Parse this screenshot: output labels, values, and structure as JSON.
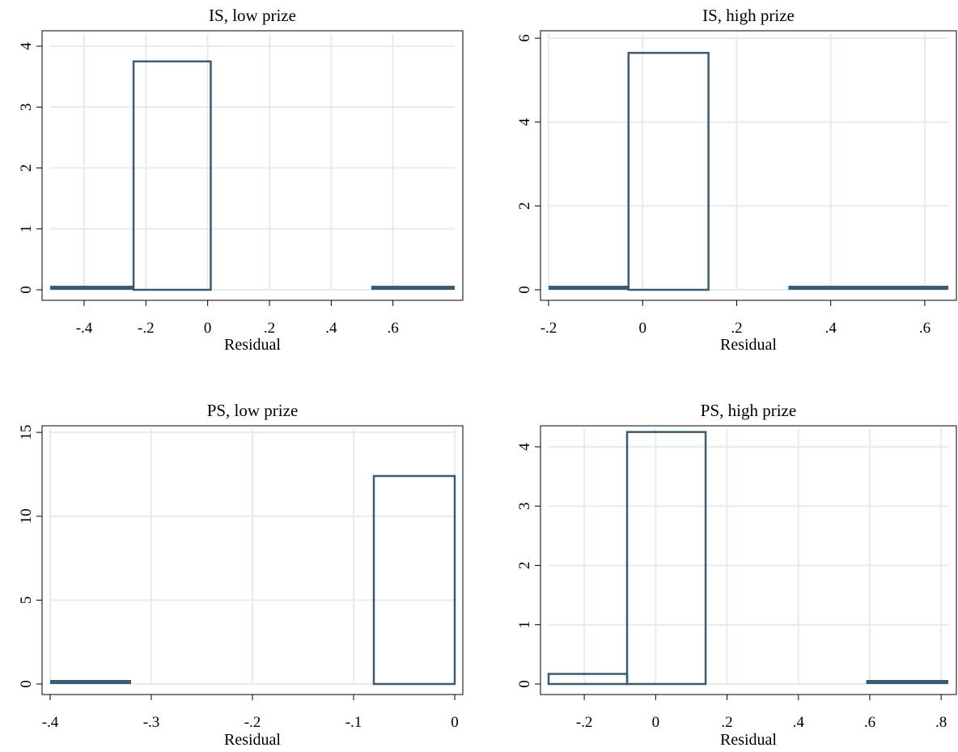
{
  "colors": {
    "bar": "#3b5b70",
    "grid": "#e4ecee",
    "frame": "#000000",
    "background": "#ffffff"
  },
  "chart_data": [
    {
      "type": "bar",
      "title": "IS, low prize",
      "xlabel": "Residual",
      "ylabel": "",
      "xlim": [
        -0.51,
        0.8
      ],
      "ylim": [
        0,
        4.2
      ],
      "xticks": [
        -0.4,
        -0.2,
        0,
        0.2,
        0.4,
        0.6
      ],
      "xtick_labels": [
        "-.4",
        "-.2",
        "0",
        ".2",
        ".4",
        ".6"
      ],
      "yticks": [
        0,
        1,
        2,
        3,
        4
      ],
      "ytick_labels": [
        "0",
        "1",
        "2",
        "3",
        "4"
      ],
      "grid": true,
      "bins": [
        {
          "x0": -0.51,
          "x1": -0.24,
          "value": 0.04
        },
        {
          "x0": -0.24,
          "x1": 0.01,
          "value": 3.75
        },
        {
          "x0": 0.53,
          "x1": 0.8,
          "value": 0.04
        }
      ]
    },
    {
      "type": "bar",
      "title": "IS, high prize",
      "xlabel": "Residual",
      "ylabel": "",
      "xlim": [
        -0.2,
        0.65
      ],
      "ylim": [
        0,
        6.1
      ],
      "xticks": [
        -0.2,
        0,
        0.2,
        0.4,
        0.6
      ],
      "xtick_labels": [
        "-.2",
        "0",
        ".2",
        ".4",
        ".6"
      ],
      "yticks": [
        0,
        2,
        4,
        6
      ],
      "ytick_labels": [
        "0",
        "2",
        "4",
        "6"
      ],
      "grid": true,
      "bins": [
        {
          "x0": -0.2,
          "x1": -0.03,
          "value": 0.05
        },
        {
          "x0": -0.03,
          "x1": 0.14,
          "value": 5.65
        },
        {
          "x0": 0.31,
          "x1": 0.65,
          "value": 0.05
        }
      ]
    },
    {
      "type": "bar",
      "title": "PS, low prize",
      "xlabel": "Residual",
      "ylabel": "",
      "xlim": [
        -0.4,
        0
      ],
      "ylim": [
        0,
        15.2
      ],
      "xticks": [
        -0.4,
        -0.3,
        -0.2,
        -0.1,
        0
      ],
      "xtick_labels": [
        "-.4",
        "-.3",
        "-.2",
        "-.1",
        "0"
      ],
      "yticks": [
        0,
        5,
        10,
        15
      ],
      "ytick_labels": [
        "0",
        "5",
        "10",
        "15"
      ],
      "grid": true,
      "bins": [
        {
          "x0": -0.4,
          "x1": -0.32,
          "value": 0.1
        },
        {
          "x0": -0.08,
          "x1": 0,
          "value": 12.4
        }
      ]
    },
    {
      "type": "bar",
      "title": "PS, high prize",
      "xlabel": "Residual",
      "ylabel": "",
      "xlim": [
        -0.3,
        0.82
      ],
      "ylim": [
        0,
        4.3
      ],
      "xticks": [
        -0.2,
        0,
        0.2,
        0.4,
        0.6,
        0.8
      ],
      "xtick_labels": [
        "-.2",
        "0",
        ".2",
        ".4",
        ".6",
        ".8"
      ],
      "yticks": [
        0,
        1,
        2,
        3,
        4
      ],
      "ytick_labels": [
        "0",
        "1",
        "2",
        "3",
        "4"
      ],
      "grid": true,
      "bins": [
        {
          "x0": -0.3,
          "x1": -0.08,
          "value": 0.17
        },
        {
          "x0": -0.08,
          "x1": 0.14,
          "value": 4.25
        },
        {
          "x0": 0.59,
          "x1": 0.82,
          "value": 0.03
        }
      ]
    }
  ]
}
